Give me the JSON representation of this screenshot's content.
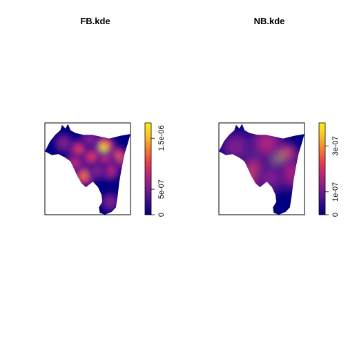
{
  "colors": {
    "palette": [
      "#000080",
      "#3b0f8a",
      "#7a1d8f",
      "#b8247a",
      "#e83e4c",
      "#f47f2b",
      "#f9c12e",
      "#fff000"
    ]
  },
  "chart_data": [
    {
      "type": "heatmap",
      "title": "FB.kde",
      "colorbar": {
        "min": 0,
        "max": 1.8e-06,
        "ticks": [
          "0",
          "5e-07",
          "1.5e-06"
        ],
        "tick_values": [
          0,
          5e-07,
          1.5e-06
        ]
      },
      "hotspots": [
        {
          "x": 0.68,
          "y": 0.28,
          "value": 1.8e-06
        },
        {
          "x": 0.4,
          "y": 0.3,
          "value": 1.1e-06
        },
        {
          "x": 0.84,
          "y": 0.38,
          "value": 1.2e-06
        },
        {
          "x": 0.56,
          "y": 0.38,
          "value": 1e-06
        },
        {
          "x": 0.72,
          "y": 0.45,
          "value": 1.3e-06
        },
        {
          "x": 0.46,
          "y": 0.57,
          "value": 1.2e-06
        },
        {
          "x": 0.76,
          "y": 0.52,
          "value": 7e-07
        },
        {
          "x": 0.53,
          "y": 0.18,
          "value": 6e-07
        },
        {
          "x": 0.22,
          "y": 0.22,
          "value": 5e-07
        },
        {
          "x": 0.35,
          "y": 0.44,
          "value": 7e-07
        },
        {
          "x": 0.61,
          "y": 0.52,
          "value": 5e-07
        },
        {
          "x": 0.76,
          "y": 0.86,
          "value": 4e-07
        }
      ]
    },
    {
      "type": "heatmap",
      "title": "NB.kde",
      "colorbar": {
        "min": 0,
        "max": 4e-07,
        "ticks": [
          "0",
          "1e-07",
          "3e-07"
        ],
        "tick_values": [
          0,
          1e-07,
          3e-07
        ]
      },
      "hotspots": [
        {
          "x": 0.38,
          "y": 0.33,
          "value": 3.5e-07
        },
        {
          "x": 0.72,
          "y": 0.42,
          "value": 3.8e-07
        },
        {
          "x": 0.45,
          "y": 0.56,
          "value": 2.6e-07
        },
        {
          "x": 0.56,
          "y": 0.22,
          "value": 1.8e-07
        },
        {
          "x": 0.2,
          "y": 0.26,
          "value": 1.4e-07
        },
        {
          "x": 0.82,
          "y": 0.55,
          "value": 1.6e-07
        },
        {
          "x": 0.6,
          "y": 0.6,
          "value": 1.2e-07
        }
      ]
    }
  ]
}
